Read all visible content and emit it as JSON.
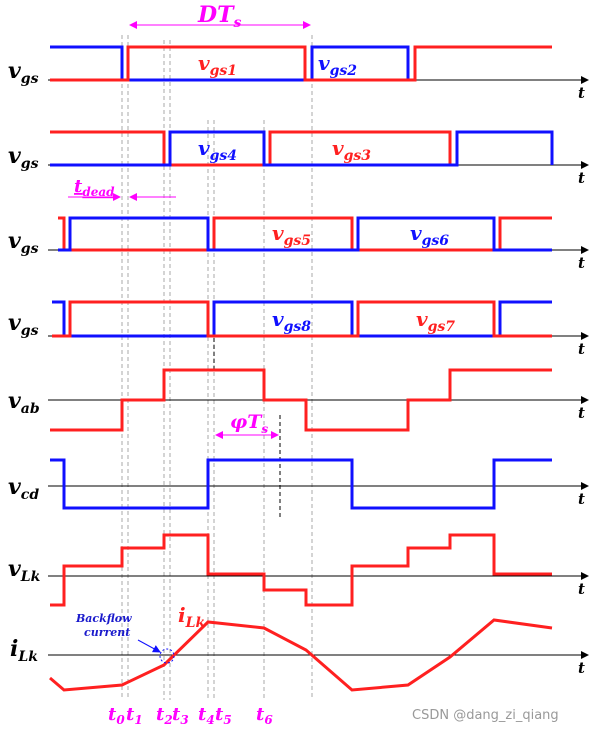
{
  "diagram": {
    "title_interval": "DT",
    "title_interval_sub": "s",
    "axis_t": "t",
    "rows": [
      {
        "id": "vgs-a",
        "label": "v",
        "label_sub": "gs",
        "labels": [
          {
            "text": "v",
            "sub": "gs1",
            "color": "#ff2020"
          },
          {
            "text": "v",
            "sub": "gs2",
            "color": "#1010ff"
          }
        ]
      },
      {
        "id": "vgs-b",
        "label": "v",
        "label_sub": "gs",
        "labels": [
          {
            "text": "v",
            "sub": "gs4",
            "color": "#1010ff"
          },
          {
            "text": "v",
            "sub": "gs3",
            "color": "#ff2020"
          }
        ]
      },
      {
        "id": "vgs-c",
        "label": "v",
        "label_sub": "gs",
        "labels": [
          {
            "text": "v",
            "sub": "gs5",
            "color": "#ff2020"
          },
          {
            "text": "v",
            "sub": "gs6",
            "color": "#1010ff"
          }
        ]
      },
      {
        "id": "vgs-d",
        "label": "v",
        "label_sub": "gs",
        "labels": [
          {
            "text": "v",
            "sub": "gs8",
            "color": "#1010ff"
          },
          {
            "text": "v",
            "sub": "gs7",
            "color": "#ff2020"
          }
        ]
      },
      {
        "id": "vab",
        "label": "v",
        "label_sub": "ab",
        "labels": []
      },
      {
        "id": "vcd",
        "label": "v",
        "label_sub": "cd",
        "labels": []
      },
      {
        "id": "vLk",
        "label": "v",
        "label_sub": "Lk",
        "labels": []
      },
      {
        "id": "iLk",
        "label": "i",
        "label_sub": "Lk",
        "labels": [
          {
            "text": "i",
            "sub": "Lk",
            "color": "#ff2020"
          }
        ]
      }
    ],
    "tdead": {
      "text": "t",
      "sub": "dead"
    },
    "phi": {
      "text": "φT",
      "sub": "s"
    },
    "backflow_line1": "Backflow",
    "backflow_line2": "current",
    "time_ticks": [
      {
        "text": "t",
        "sub": "0"
      },
      {
        "text": "t",
        "sub": "1"
      },
      {
        "text": "t",
        "sub": "2"
      },
      {
        "text": "t",
        "sub": "3"
      },
      {
        "text": "t",
        "sub": "4"
      },
      {
        "text": "t",
        "sub": "5"
      },
      {
        "text": "t",
        "sub": "6"
      }
    ],
    "watermark": "CSDN @dang_zi_qiang",
    "colors": {
      "red": "#ff2020",
      "blue": "#1010ff",
      "magenta": "#ff00ff"
    }
  }
}
